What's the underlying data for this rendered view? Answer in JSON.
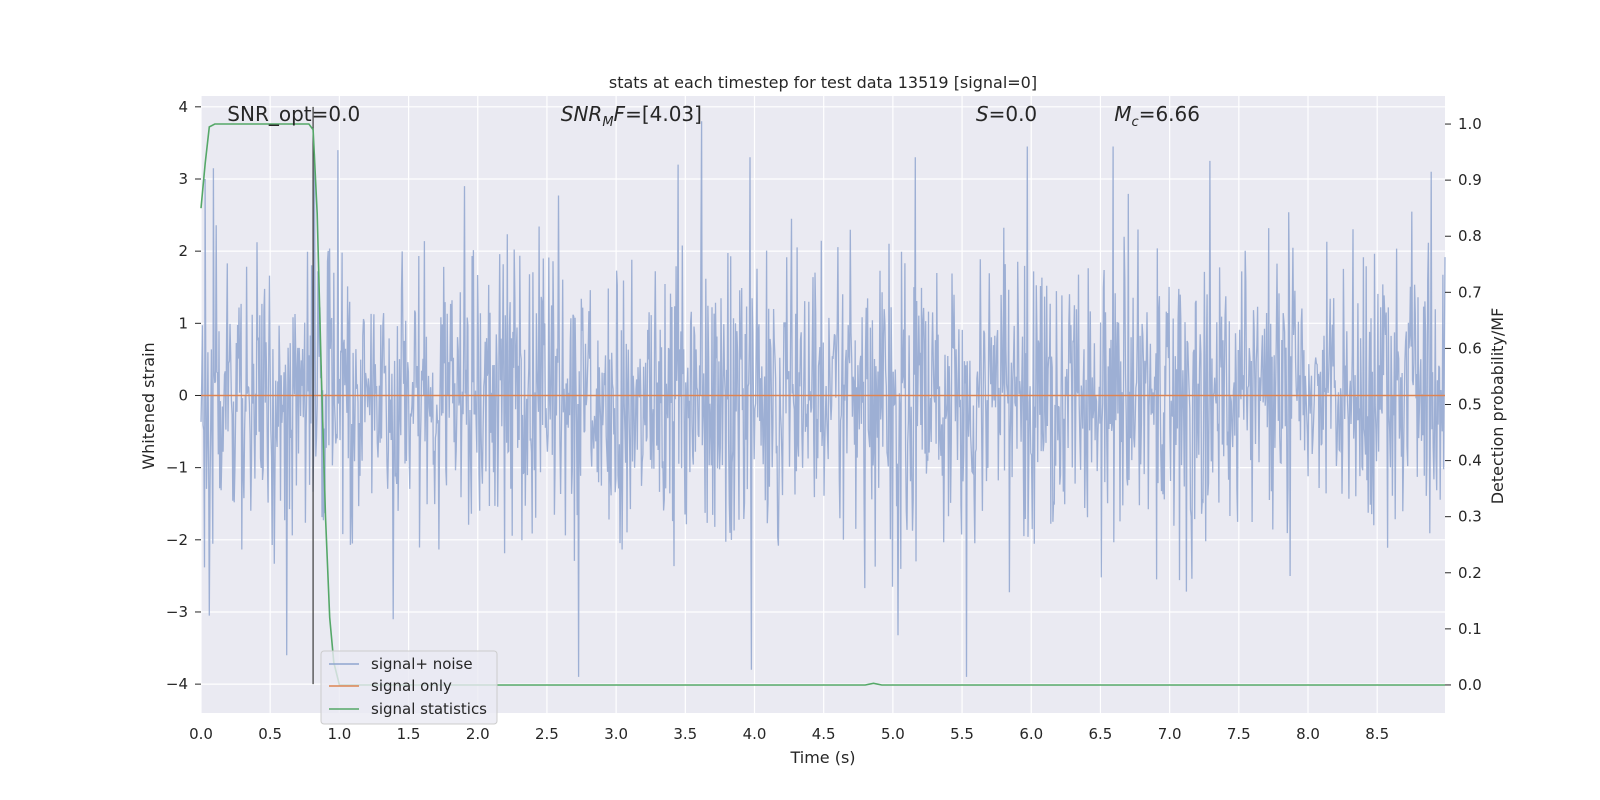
{
  "chart_data": {
    "type": "line",
    "title": "stats at each timestep for test data 13519 [signal=0]",
    "xlabel": "Time (s)",
    "ylabel": "Whitened strain",
    "y2label": "Detection probability/MF",
    "xlim": [
      0.0,
      8.99
    ],
    "ylim": [
      -4.4,
      4.15
    ],
    "y2lim": [
      -0.05,
      1.05
    ],
    "xticks": [
      "0.0",
      "0.5",
      "1.0",
      "1.5",
      "2.0",
      "2.5",
      "3.0",
      "3.5",
      "4.0",
      "4.5",
      "5.0",
      "5.5",
      "6.0",
      "6.5",
      "7.0",
      "7.5",
      "8.0",
      "8.5"
    ],
    "yticks": [
      "4",
      "3",
      "2",
      "1",
      "0",
      "−1",
      "−2",
      "−3",
      "−4"
    ],
    "y2ticks": [
      "1.0",
      "0.9",
      "0.8",
      "0.7",
      "0.6",
      "0.5",
      "0.4",
      "0.3",
      "0.2",
      "0.1",
      "0.0"
    ],
    "grid": true,
    "legend_position": "lower-left",
    "annotations": [
      {
        "text": "SNR_opt=0.0",
        "x": 0.19
      },
      {
        "text": "SNR_MF=[4.03]",
        "x": 2.6
      },
      {
        "text": "S=0.0",
        "x": 5.6
      },
      {
        "text": "M_c=6.66",
        "x": 6.6
      }
    ],
    "marker_line": {
      "x": 0.81,
      "y_range": [
        -4.0,
        4.0
      ]
    },
    "series": [
      {
        "name": "signal+ noise",
        "axis": "left",
        "color": "#8fa5cf",
        "description_range": [
          -3.9,
          3.8
        ],
        "peaks": [
          {
            "x": 0.03,
            "y": 3.0
          },
          {
            "x": 0.06,
            "y": -3.05
          },
          {
            "x": 0.09,
            "y": 3.15
          },
          {
            "x": 0.62,
            "y": -3.6
          },
          {
            "x": 0.82,
            "y": 3.35
          },
          {
            "x": 0.99,
            "y": 3.4
          },
          {
            "x": 1.39,
            "y": -3.1
          },
          {
            "x": 2.73,
            "y": -3.9
          },
          {
            "x": 3.45,
            "y": 3.2
          },
          {
            "x": 3.62,
            "y": 3.8
          },
          {
            "x": 3.97,
            "y": 3.3
          },
          {
            "x": 3.98,
            "y": -3.8
          },
          {
            "x": 5.16,
            "y": 3.3
          },
          {
            "x": 5.53,
            "y": -3.9
          },
          {
            "x": 5.97,
            "y": 3.45
          },
          {
            "x": 6.59,
            "y": 3.45
          },
          {
            "x": 7.29,
            "y": 3.25
          },
          {
            "x": 8.89,
            "y": 3.1
          }
        ]
      },
      {
        "name": "signal only",
        "axis": "left",
        "color": "#dd8452",
        "x": [
          0.0,
          8.99
        ],
        "y": [
          0.0,
          0.0
        ]
      },
      {
        "name": "signal statistics",
        "axis": "right",
        "color": "#55a868",
        "x": [
          0.0,
          0.03,
          0.06,
          0.1,
          0.2,
          0.4,
          0.6,
          0.78,
          0.81,
          0.84,
          0.87,
          0.9,
          0.93,
          0.96,
          1.0,
          1.5,
          2.0,
          3.0,
          4.0,
          4.5,
          4.8,
          4.86,
          4.92,
          5.0,
          6.0,
          7.0,
          8.0,
          8.99
        ],
        "y": [
          0.85,
          0.93,
          0.995,
          1.0,
          1.0,
          1.0,
          1.0,
          1.0,
          0.99,
          0.84,
          0.55,
          0.3,
          0.12,
          0.04,
          0.0,
          0.0,
          0.0,
          0.0,
          0.0,
          0.0,
          0.0,
          0.003,
          0.0,
          0.0,
          0.0,
          0.0,
          0.0,
          0.0
        ]
      }
    ]
  }
}
